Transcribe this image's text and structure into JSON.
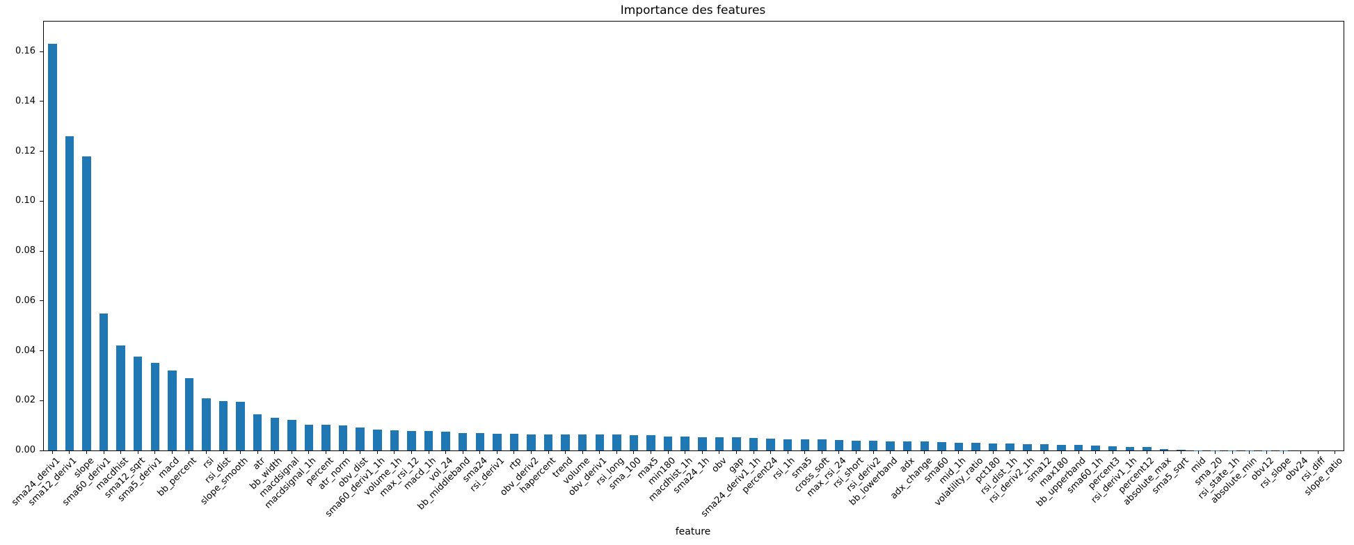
{
  "chart_data": {
    "type": "bar",
    "title": "Importance des features",
    "xlabel": "feature",
    "ylabel": "",
    "bar_color": "#1f77b4",
    "grid": false,
    "legend": "none",
    "ylim": [
      0,
      0.172
    ],
    "ytick_values": [
      0.0,
      0.02,
      0.04,
      0.06,
      0.08,
      0.1,
      0.12,
      0.14,
      0.16
    ],
    "ytick_labels": [
      "0.00",
      "0.02",
      "0.04",
      "0.06",
      "0.08",
      "0.10",
      "0.12",
      "0.14",
      "0.16"
    ],
    "categories": [
      "sma24_deriv1",
      "sma12_deriv1",
      "slope",
      "sma60_deriv1",
      "macdhist",
      "sma12_sqrt",
      "sma5_deriv1",
      "macd",
      "bb_percent",
      "rsi",
      "rsi_dist",
      "slope_smooth",
      "atr",
      "bb_width",
      "macdsignal",
      "macdsignal_1h",
      "percent",
      "atr_norm",
      "obv_dist",
      "sma60_deriv1_1h",
      "volume_1h",
      "max_rsi_12",
      "macd_1h",
      "vol_24",
      "bb_middleband",
      "sma24",
      "rsi_deriv1",
      "rtp",
      "obv_deriv2",
      "hapercent",
      "trend",
      "volume",
      "obv_deriv1",
      "rsi_long",
      "sma_100",
      "max5",
      "min180",
      "macdhist_1h",
      "sma24_1h",
      "obv",
      "gap",
      "sma24_deriv1_1h",
      "percent24",
      "rsi_1h",
      "sma5",
      "cross_soft",
      "max_rsi_24",
      "rsi_short",
      "rsi_deriv2",
      "bb_lowerband",
      "adx",
      "adx_change",
      "sma60",
      "mid_1h",
      "volatility_ratio",
      "pct180",
      "rsi_dist_1h",
      "rsi_deriv2_1h",
      "sma12",
      "max180",
      "bb_upperband",
      "sma60_1h",
      "percent3",
      "rsi_deriv1_1h",
      "percent12",
      "absolute_max",
      "sma5_sqrt",
      "mid",
      "sma_20",
      "rsi_state_1h",
      "absolute_min",
      "obv12",
      "rsi_slope",
      "obv24",
      "rsi_diff",
      "slope_ratio"
    ],
    "values": [
      0.163,
      0.126,
      0.118,
      0.055,
      0.042,
      0.0375,
      0.035,
      0.032,
      0.029,
      0.021,
      0.0197,
      0.0196,
      0.0145,
      0.013,
      0.0122,
      0.0103,
      0.0102,
      0.01,
      0.0092,
      0.0083,
      0.0082,
      0.0078,
      0.0077,
      0.0074,
      0.0071,
      0.007,
      0.0066,
      0.0066,
      0.0065,
      0.0065,
      0.0065,
      0.0064,
      0.0064,
      0.0063,
      0.0062,
      0.0061,
      0.0056,
      0.0055,
      0.0053,
      0.0052,
      0.0052,
      0.0051,
      0.0047,
      0.0046,
      0.0046,
      0.0044,
      0.0042,
      0.004,
      0.0038,
      0.0037,
      0.0036,
      0.0035,
      0.0033,
      0.0032,
      0.0031,
      0.0029,
      0.0028,
      0.0026,
      0.0025,
      0.0023,
      0.0021,
      0.002,
      0.0016,
      0.0015,
      0.0014,
      0.0006,
      0.0002,
      0.0001,
      0.0001,
      8e-05,
      6e-05,
      5e-05,
      4e-05,
      2e-05,
      1e-05,
      1e-05
    ]
  }
}
